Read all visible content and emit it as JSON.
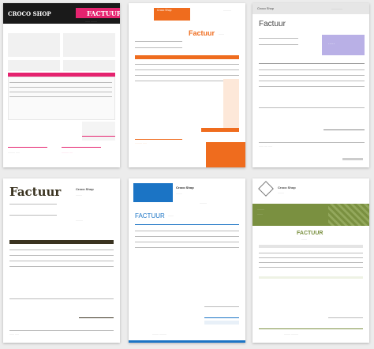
{
  "templates": [
    {
      "shop": "CROCO SHOP",
      "title": "FACTUUR",
      "accent": "#e5236f"
    },
    {
      "shop": "Croco Shop",
      "title": "Factuur",
      "accent": "#ef6c1e"
    },
    {
      "shop": "Croco Shop",
      "title": "Factuur",
      "accent": "#b9b0e6"
    },
    {
      "shop": "Croco Shop",
      "title": "Factuur",
      "accent": "#3a3320"
    },
    {
      "shop": "Croco Shop",
      "title": "FACTUUR",
      "accent": "#1b74c5"
    },
    {
      "shop": "Croco Shop",
      "title": "FACTUUR",
      "accent": "#7a9040"
    }
  ]
}
